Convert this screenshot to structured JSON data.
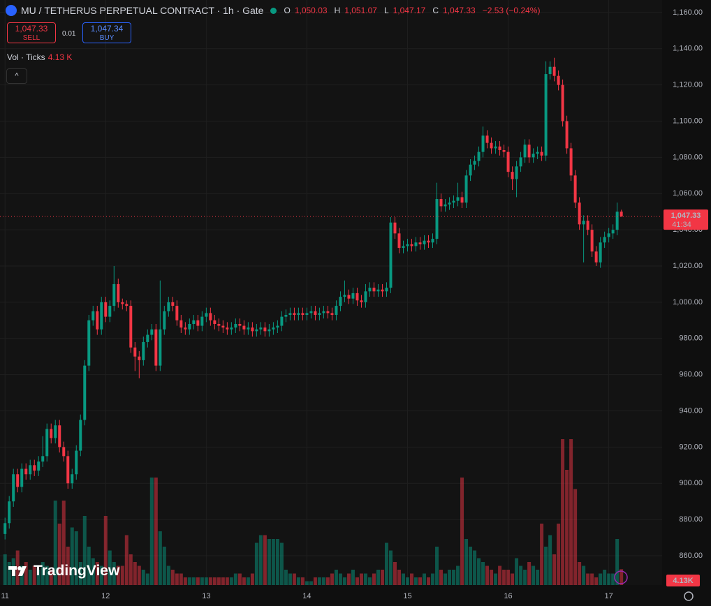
{
  "header": {
    "symbol": "MU / TETHERUS PERPETUAL CONTRACT · 1h · Gate",
    "ohlc": [
      {
        "label": "O",
        "value": "1,050.03"
      },
      {
        "label": "H",
        "value": "1,051.07"
      },
      {
        "label": "L",
        "value": "1,047.17"
      },
      {
        "label": "C",
        "value": "1,047.33"
      }
    ],
    "change": "−2.53 (−0.24%)",
    "sell": {
      "price": "1,047.33",
      "label": "SELL"
    },
    "spread": "0.01",
    "buy": {
      "price": "1,047.34",
      "label": "BUY"
    },
    "vol_label": "Vol · Ticks",
    "vol_value": "4.13 K"
  },
  "price_tag": {
    "price": "1,047.33",
    "countdown": "41:34"
  },
  "volume_tag": "4.13K",
  "logo": "TradingView",
  "chart_data": {
    "type": "candlestick",
    "up_color": "#089981",
    "down_color": "#f23645",
    "grid": true,
    "xlim": [
      10.95,
      17.53
    ],
    "xticks": [
      11,
      12,
      13,
      14,
      15,
      16,
      17
    ],
    "ylim": [
      843.8,
      1166.9
    ],
    "yticks": [
      {
        "value": 860,
        "label": "860.00"
      },
      {
        "value": 880,
        "label": "880.00"
      },
      {
        "value": 900,
        "label": "900.00"
      },
      {
        "value": 920,
        "label": "920.00"
      },
      {
        "value": 940,
        "label": "940.00"
      },
      {
        "value": 960,
        "label": "960.00"
      },
      {
        "value": 980,
        "label": "980.00"
      },
      {
        "value": 1000,
        "label": "1,000.00"
      },
      {
        "value": 1020,
        "label": "1,020.00"
      },
      {
        "value": 1040,
        "label": "1,040.00"
      },
      {
        "value": 1060,
        "label": "1,060.00"
      },
      {
        "value": 1080,
        "label": "1,080.00"
      },
      {
        "value": 1100,
        "label": "1,100.00"
      },
      {
        "value": 1120,
        "label": "1,120.00"
      },
      {
        "value": 1140,
        "label": "1,140.00"
      },
      {
        "value": 1160,
        "label": "1,160.00"
      }
    ],
    "vlim": [
      0,
      40
    ],
    "open": [
      872,
      878,
      890,
      905,
      898,
      908,
      905,
      910,
      907,
      912,
      915,
      930,
      925,
      932,
      920,
      915,
      900,
      905,
      918,
      935,
      965,
      990,
      995,
      985,
      1000,
      992,
      998,
      1010,
      1000,
      999,
      998,
      975,
      970,
      968,
      978,
      982,
      985,
      965,
      985,
      995,
      1000,
      998,
      990,
      986,
      985,
      988,
      990,
      987,
      992,
      994,
      990,
      988,
      987,
      986,
      985,
      986,
      988,
      987,
      985,
      986,
      984,
      985,
      986,
      984,
      985,
      986,
      987,
      992,
      993,
      994,
      993,
      994,
      993,
      994,
      995,
      993,
      994,
      995,
      994,
      993,
      998,
      1003,
      1004,
      1002,
      1005,
      1001,
      1000,
      1006,
      1008,
      1006,
      1007,
      1006,
      1008,
      1044,
      1038,
      1030,
      1031,
      1032,
      1031,
      1033,
      1032,
      1034,
      1033,
      1035,
      1057,
      1053,
      1054,
      1055,
      1056,
      1058,
      1055,
      1070,
      1076,
      1078,
      1083,
      1092,
      1088,
      1085,
      1086,
      1084,
      1083,
      1072,
      1068,
      1075,
      1080,
      1087,
      1080,
      1082,
      1083,
      1081,
      1126,
      1130,
      1125,
      1120,
      1100,
      1085,
      1070,
      1055,
      1043,
      1045,
      1040,
      1028,
      1022,
      1033,
      1036,
      1038,
      1040,
      1050.03
    ],
    "high": [
      881,
      893,
      908,
      908,
      911,
      911,
      913,
      913,
      915,
      926,
      933,
      933,
      935,
      935,
      923,
      918,
      908,
      921,
      938,
      968,
      993,
      998,
      998,
      1003,
      1003,
      1001,
      1020,
      1013,
      1002,
      1001,
      1001,
      978,
      973,
      981,
      985,
      988,
      988,
      1012,
      998,
      1003,
      1003,
      1001,
      993,
      989,
      991,
      993,
      993,
      995,
      997,
      997,
      993,
      991,
      990,
      989,
      989,
      991,
      991,
      990,
      989,
      989,
      988,
      989,
      989,
      988,
      989,
      990,
      995,
      996,
      997,
      997,
      997,
      997,
      997,
      998,
      998,
      997,
      998,
      998,
      997,
      1001,
      1006,
      1012,
      1007,
      1008,
      1008,
      1004,
      1010,
      1011,
      1011,
      1010,
      1010,
      1011,
      1047,
      1047,
      1041,
      1034,
      1035,
      1035,
      1036,
      1036,
      1037,
      1037,
      1038,
      1066,
      1060,
      1057,
      1058,
      1059,
      1066,
      1061,
      1073,
      1079,
      1081,
      1086,
      1097,
      1095,
      1091,
      1089,
      1089,
      1087,
      1086,
      1075,
      1078,
      1083,
      1090,
      1090,
      1085,
      1086,
      1086,
      1133,
      1133,
      1135,
      1128,
      1123,
      1103,
      1088,
      1073,
      1058,
      1048,
      1048,
      1043,
      1031,
      1036,
      1039,
      1041,
      1043,
      1055,
      1051.07
    ],
    "low": [
      869,
      875,
      887,
      895,
      895,
      902,
      902,
      904,
      904,
      909,
      912,
      922,
      922,
      917,
      912,
      897,
      897,
      902,
      915,
      932,
      962,
      987,
      982,
      982,
      989,
      989,
      995,
      997,
      996,
      995,
      972,
      962,
      958,
      965,
      975,
      979,
      962,
      962,
      982,
      992,
      995,
      987,
      983,
      982,
      982,
      985,
      984,
      984,
      989,
      987,
      985,
      984,
      983,
      982,
      982,
      983,
      984,
      982,
      982,
      981,
      981,
      982,
      981,
      981,
      982,
      983,
      984,
      989,
      990,
      990,
      990,
      990,
      990,
      991,
      990,
      990,
      991,
      991,
      990,
      990,
      995,
      1000,
      999,
      999,
      998,
      997,
      997,
      1003,
      1003,
      1003,
      1003,
      1003,
      1005,
      1035,
      1027,
      1027,
      1028,
      1028,
      1028,
      1029,
      1029,
      1030,
      1030,
      1032,
      1050,
      1050,
      1051,
      1052,
      1053,
      1052,
      1052,
      1067,
      1073,
      1075,
      1080,
      1085,
      1082,
      1082,
      1081,
      1080,
      1069,
      1062,
      1058,
      1072,
      1077,
      1077,
      1077,
      1079,
      1078,
      1078,
      1123,
      1122,
      1117,
      1097,
      1082,
      1067,
      1052,
      1040,
      1022,
      1037,
      1025,
      1020,
      1019,
      1030,
      1033,
      1035,
      1037,
      1047.17
    ],
    "close": [
      878,
      890,
      905,
      898,
      908,
      905,
      910,
      907,
      912,
      915,
      930,
      925,
      932,
      920,
      915,
      900,
      905,
      918,
      935,
      965,
      990,
      995,
      985,
      1000,
      992,
      998,
      1010,
      1000,
      999,
      998,
      975,
      970,
      968,
      978,
      982,
      985,
      965,
      985,
      995,
      1000,
      998,
      990,
      986,
      985,
      988,
      990,
      987,
      992,
      994,
      990,
      988,
      987,
      986,
      985,
      986,
      988,
      987,
      985,
      986,
      984,
      985,
      986,
      984,
      985,
      986,
      987,
      992,
      993,
      994,
      993,
      994,
      993,
      994,
      995,
      993,
      994,
      995,
      994,
      993,
      998,
      1003,
      1004,
      1002,
      1005,
      1001,
      1000,
      1006,
      1008,
      1006,
      1007,
      1006,
      1008,
      1044,
      1038,
      1030,
      1031,
      1032,
      1031,
      1033,
      1032,
      1034,
      1033,
      1035,
      1057,
      1053,
      1054,
      1055,
      1056,
      1058,
      1055,
      1070,
      1076,
      1078,
      1083,
      1092,
      1088,
      1085,
      1086,
      1084,
      1083,
      1072,
      1068,
      1075,
      1080,
      1087,
      1080,
      1082,
      1083,
      1081,
      1126,
      1130,
      1125,
      1120,
      1100,
      1085,
      1070,
      1055,
      1043,
      1045,
      1040,
      1028,
      1022,
      1033,
      1036,
      1038,
      1040,
      1050,
      1047.33
    ],
    "volume": [
      8,
      6,
      7,
      9,
      5,
      6,
      4,
      5,
      4,
      6,
      5,
      4,
      22,
      16,
      22,
      10,
      15,
      14,
      6,
      18,
      10,
      7,
      6,
      5,
      18,
      9,
      6,
      5,
      5,
      13,
      8,
      6,
      5,
      4,
      3,
      28,
      28,
      14,
      10,
      5,
      4,
      3,
      3,
      2,
      2,
      2,
      2,
      2,
      2,
      2,
      2,
      2,
      2,
      2,
      2,
      3,
      3,
      2,
      2,
      3,
      11,
      13,
      13,
      12,
      12,
      12,
      11,
      4,
      3,
      3,
      2,
      2,
      1,
      1,
      2,
      2,
      2,
      2,
      3,
      4,
      3,
      2,
      3,
      4,
      2,
      3,
      3,
      2,
      3,
      4,
      4,
      11,
      9,
      6,
      4,
      3,
      2,
      3,
      2,
      2,
      3,
      2,
      3,
      10,
      4,
      3,
      4,
      4,
      5,
      28,
      12,
      10,
      9,
      7,
      6,
      5,
      4,
      3,
      5,
      4,
      4,
      3,
      7,
      5,
      4,
      6,
      5,
      4,
      16,
      10,
      13,
      8,
      16,
      38,
      30,
      38,
      25,
      6,
      5,
      3,
      3,
      2,
      3,
      4,
      3,
      3,
      12,
      4.13
    ]
  }
}
